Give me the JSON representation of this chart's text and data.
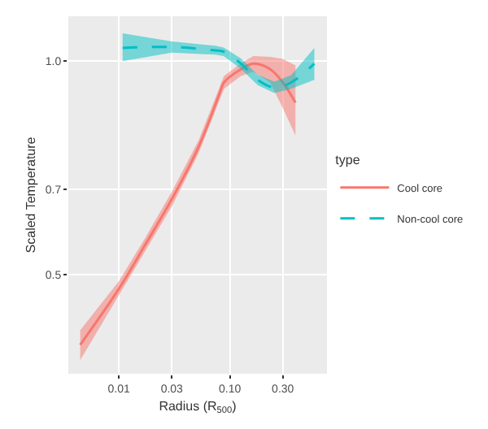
{
  "chart_data": {
    "type": "line",
    "xlabel": "Radius (R$_{500}$)",
    "ylabel": "Scaled Temperature",
    "legend_title": "type",
    "legend": "right",
    "grid": true,
    "log": "x",
    "xlim": [
      0.0035,
      0.75
    ],
    "xticks": [
      0.01,
      0.03,
      {
        "value": 0.1,
        "label": "0.10"
      },
      {
        "value": 0.3,
        "label": "0.30"
      }
    ],
    "ylim": [
      0.268,
      1.105
    ],
    "yticks": [
      0.5,
      0.7,
      {
        "value": 1.0,
        "label": "1.0"
      }
    ],
    "series": [
      {
        "name": "Cool core",
        "color": "#f8766d",
        "line_style": "solid",
        "x": [
          0.00448,
          0.01,
          0.0169,
          0.03,
          0.0524,
          0.081,
          0.0885,
          0.126,
          0.163,
          0.231,
          0.3,
          0.39
        ],
        "values": [
          0.336,
          0.467,
          0.566,
          0.677,
          0.8,
          0.925,
          0.95,
          0.981,
          0.994,
          0.981,
          0.95,
          0.903
        ],
        "lower": [
          0.3,
          0.45,
          0.55,
          0.66,
          0.785,
          0.91,
          0.935,
          0.965,
          0.975,
          0.95,
          0.89,
          0.826
        ],
        "upper": [
          0.37,
          0.485,
          0.582,
          0.694,
          0.815,
          0.94,
          0.965,
          0.995,
          1.012,
          1.01,
          1.005,
          0.99
        ]
      },
      {
        "name": "Non-cool core",
        "color": "#00bfc4",
        "line_style": "dashed",
        "x": [
          0.0108,
          0.03,
          0.074,
          0.088,
          0.126,
          0.178,
          0.252,
          0.357,
          0.577
        ],
        "values": [
          1.031,
          1.033,
          1.025,
          1.022,
          0.994,
          0.956,
          0.938,
          0.95,
          0.994
        ],
        "lower": [
          1.0,
          1.02,
          1.015,
          1.012,
          0.982,
          0.944,
          0.925,
          0.935,
          0.956
        ],
        "upper": [
          1.065,
          1.046,
          1.036,
          1.032,
          1.006,
          0.968,
          0.952,
          0.967,
          1.031
        ]
      }
    ]
  }
}
